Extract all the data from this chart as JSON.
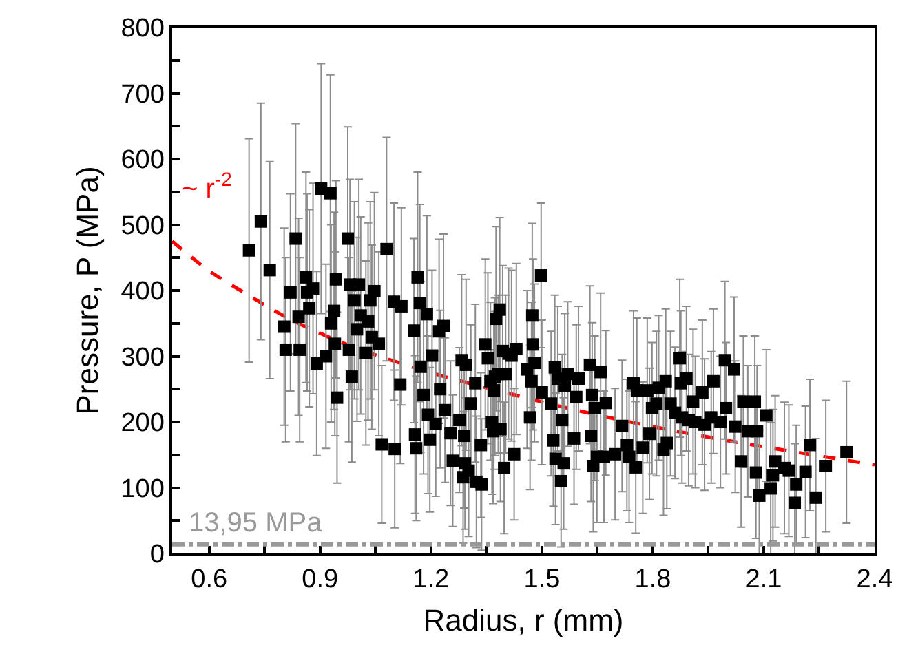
{
  "chart_data": {
    "type": "scatter",
    "xlabel": "Radius, r (mm)",
    "ylabel": "Pressure, P (MPa)",
    "xlim": [
      0.5,
      2.4
    ],
    "xticks": [
      0.6,
      {
        "value": 0.75,
        "label": null
      },
      0.9,
      {
        "value": 1.05,
        "label": null
      },
      1.2,
      {
        "value": 1.35,
        "label": null
      },
      1.5,
      {
        "value": 1.65,
        "label": null
      },
      1.8,
      {
        "value": 1.95,
        "label": null
      },
      2.1,
      {
        "value": 2.25,
        "label": null
      },
      2.4
    ],
    "ylim": [
      0,
      800
    ],
    "yticks": [
      0,
      {
        "value": 50,
        "label": null
      },
      100,
      {
        "value": 150,
        "label": null
      },
      200,
      {
        "value": 250,
        "label": null
      },
      300,
      {
        "value": 350,
        "label": null
      },
      400,
      {
        "value": 450,
        "label": null
      },
      500,
      {
        "value": 550,
        "label": null
      },
      600,
      {
        "value": 650,
        "label": null
      },
      700,
      {
        "value": 750,
        "label": null
      },
      800
    ],
    "grid": false,
    "marker": "square",
    "series": [
      {
        "type": "scatter",
        "color": "#000000",
        "x": [
          0.708,
          0.74,
          0.764,
          0.803,
          0.807,
          0.82,
          0.834,
          0.842,
          0.845,
          0.862,
          0.865,
          0.871,
          0.881,
          0.891,
          0.903,
          0.916,
          0.928,
          0.93,
          0.938,
          0.94,
          0.946,
          0.943,
          0.975,
          0.978,
          0.981,
          0.986,
          0.993,
          1.0,
          1.005,
          1.01,
          1.024,
          1.03,
          1.036,
          1.04,
          1.047,
          1.059,
          1.067,
          1.08,
          1.102,
          1.1,
          1.117,
          1.12,
          1.157,
          1.16,
          1.164,
          1.154,
          1.17,
          1.172,
          1.189,
          1.18,
          1.192,
          1.197,
          1.203,
          1.213,
          1.222,
          1.225,
          1.234,
          1.238,
          1.253,
          1.259,
          1.283,
          1.295,
          1.277,
          1.29,
          1.308,
          1.292,
          1.287,
          1.302,
          1.32,
          1.323,
          1.337,
          1.335,
          1.347,
          1.354,
          1.361,
          1.365,
          1.368,
          1.37,
          1.373,
          1.376,
          1.382,
          1.386,
          1.388,
          1.394,
          1.398,
          1.402,
          1.41,
          1.418,
          1.425,
          1.431,
          1.46,
          1.468,
          1.472,
          1.474,
          1.476,
          1.48,
          1.498,
          1.5,
          1.525,
          1.531,
          1.535,
          1.537,
          1.543,
          1.555,
          1.559,
          1.552,
          1.562,
          1.57,
          1.587,
          1.593,
          1.599,
          1.63,
          1.636,
          1.633,
          1.639,
          1.643,
          1.649,
          1.659,
          1.668,
          1.673,
          1.698,
          1.717,
          1.73,
          1.736,
          1.748,
          1.754,
          1.757,
          1.773,
          1.785,
          1.791,
          1.798,
          1.81,
          1.816,
          1.829,
          1.835,
          1.838,
          1.848,
          1.86,
          1.873,
          1.876,
          1.879,
          1.891,
          1.897,
          1.909,
          1.915,
          1.934,
          1.94,
          1.958,
          1.964,
          1.983,
          1.995,
          1.998,
          2.02,
          2.023,
          2.045,
          2.039,
          2.057,
          2.076,
          2.079,
          2.082,
          2.088,
          2.107,
          2.119,
          2.125,
          2.131,
          2.156,
          2.168,
          2.184,
          2.188,
          2.213,
          2.225,
          2.241,
          2.268,
          2.324
        ],
        "values": [
          461,
          505,
          431,
          345,
          310,
          397,
          479,
          360,
          310,
          420,
          397,
          373,
          403,
          289,
          555,
          300,
          548,
          350,
          369,
          319,
          237,
          417,
          479,
          310,
          409,
          269,
          385,
          341,
          409,
          362,
          305,
          353,
          385,
          329,
          399,
          319,
          166,
          463,
          159,
          383,
          257,
          376,
          181,
          160,
          420,
          339,
          381,
          284,
          364,
          241,
          211,
          173,
          301,
          197,
          338,
          250,
          346,
          218,
          183,
          141,
          294,
          287,
          203,
          179,
          228,
          137,
          116,
          126,
          259,
          109,
          105,
          165,
          318,
          297,
          262,
          200,
          186,
          248,
          269,
          357,
          273,
          371,
          189,
          308,
          130,
          273,
          304,
          301,
          151,
          311,
          280,
          207,
          262,
          362,
          318,
          290,
          423,
          245,
          228,
          172,
          283,
          144,
          266,
          203,
          137,
          110,
          255,
          273,
          175,
          238,
          266,
          287,
          241,
          179,
          133,
          221,
          147,
          276,
          147,
          229,
          151,
          194,
          165,
          147,
          259,
          131,
          248,
          161,
          248,
          182,
          221,
          228,
          252,
          158,
          262,
          168,
          228,
          214,
          297,
          259,
          207,
          266,
          203,
          231,
          200,
          245,
          196,
          207,
          262,
          200,
          294,
          221,
          280,
          193,
          231,
          140,
          186,
          231,
          123,
          186,
          88,
          210,
          99,
          119,
          140,
          130,
          126,
          77,
          105,
          124,
          165,
          85,
          133,
          154
        ],
        "errors": [
          170,
          180,
          165,
          150,
          140,
          150,
          175,
          150,
          140,
          160,
          150,
          150,
          160,
          140,
          190,
          140,
          180,
          150,
          150,
          140,
          130,
          150,
          170,
          140,
          160,
          130,
          150,
          140,
          160,
          150,
          140,
          150,
          150,
          140,
          150,
          140,
          120,
          170,
          120,
          150,
          120,
          150,
          120,
          110,
          160,
          140,
          150,
          130,
          150,
          120,
          120,
          110,
          130,
          110,
          140,
          120,
          140,
          110,
          110,
          100,
          130,
          130,
          110,
          110,
          120,
          100,
          100,
          100,
          120,
          100,
          100,
          110,
          130,
          130,
          120,
          110,
          110,
          120,
          120,
          140,
          120,
          140,
          110,
          130,
          100,
          120,
          130,
          130,
          100,
          130,
          120,
          110,
          120,
          140,
          130,
          120,
          110,
          110,
          110,
          100,
          110,
          100,
          110,
          100,
          100,
          100,
          110,
          110,
          100,
          110,
          110,
          120,
          110,
          100,
          100,
          110,
          100,
          120,
          100,
          110,
          100,
          100,
          100,
          100,
          110,
          100,
          110,
          100,
          110,
          100,
          100,
          110,
          110,
          100,
          110,
          100,
          110,
          100,
          120,
          110,
          100,
          110,
          100,
          110,
          100,
          110,
          100,
          100,
          110,
          100,
          120,
          100,
          110,
          100,
          100,
          100,
          100,
          100,
          100,
          100,
          100,
          100,
          100,
          100,
          100,
          100,
          100,
          90,
          90,
          100,
          100,
          90,
          100,
          108
        ]
      },
      {
        "type": "line",
        "color": "#ff0000",
        "marker": "none",
        "line_style": "dashed",
        "x": [
          0.5,
          0.6,
          0.7,
          0.8,
          0.9,
          1.0,
          1.2,
          1.4,
          1.6,
          1.8,
          2.0,
          2.2,
          2.4
        ],
        "values": [
          475,
          430,
          395,
          362,
          335,
          312,
          275,
          245,
          217,
          193,
          172,
          153,
          135
        ]
      }
    ],
    "annotations": [
      "~ r$^{-2}$"
    ],
    "ref_lines": [
      {
        "axis": "y",
        "value": 13.95,
        "label": "13,95 MPa",
        "color": "#999999",
        "line_style": "dashed"
      }
    ]
  }
}
